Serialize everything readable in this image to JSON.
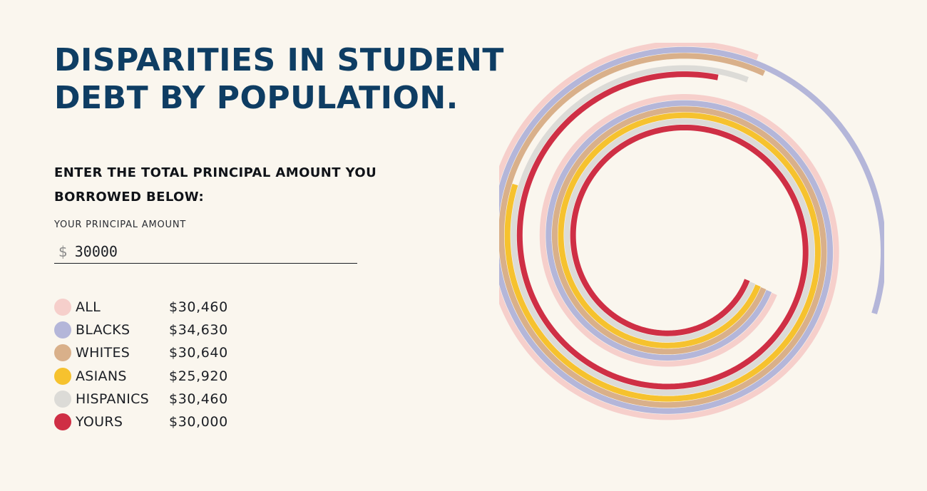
{
  "title": {
    "line1": "DISPARITIES IN STUDENT",
    "line2": "DEBT BY POPULATION."
  },
  "prompt": "ENTER THE TOTAL PRINCIPAL AMOUNT YOU BORROWED BELOW:",
  "input": {
    "label": "YOUR PRINCIPAL AMOUNT",
    "currency_symbol": "$",
    "value": "30000"
  },
  "legend": [
    {
      "label": "ALL",
      "value": "$30,460",
      "color": "#f6cfcb"
    },
    {
      "label": "BLACKS",
      "value": "$34,630",
      "color": "#b4b6d9"
    },
    {
      "label": "WHITES",
      "value": "$30,640",
      "color": "#d9b08a"
    },
    {
      "label": "ASIANS",
      "value": "$25,920",
      "color": "#f6c22e"
    },
    {
      "label": "HISPANICS",
      "value": "$30,460",
      "color": "#dcdbd7"
    },
    {
      "label": "YOURS",
      "value": "$30,000",
      "color": "#cf2f45"
    }
  ],
  "chart_data": {
    "type": "spiral",
    "series": [
      {
        "name": "ALL",
        "value": 30460,
        "color": "#f6cfcb"
      },
      {
        "name": "BLACKS",
        "value": 34630,
        "color": "#b4b6d9"
      },
      {
        "name": "WHITES",
        "value": 30640,
        "color": "#d9b08a"
      },
      {
        "name": "ASIANS",
        "value": 25920,
        "color": "#f6c22e"
      },
      {
        "name": "HISPANICS",
        "value": 30460,
        "color": "#dcdbd7"
      },
      {
        "name": "YOURS",
        "value": 30000,
        "color": "#cf2f45"
      }
    ]
  }
}
